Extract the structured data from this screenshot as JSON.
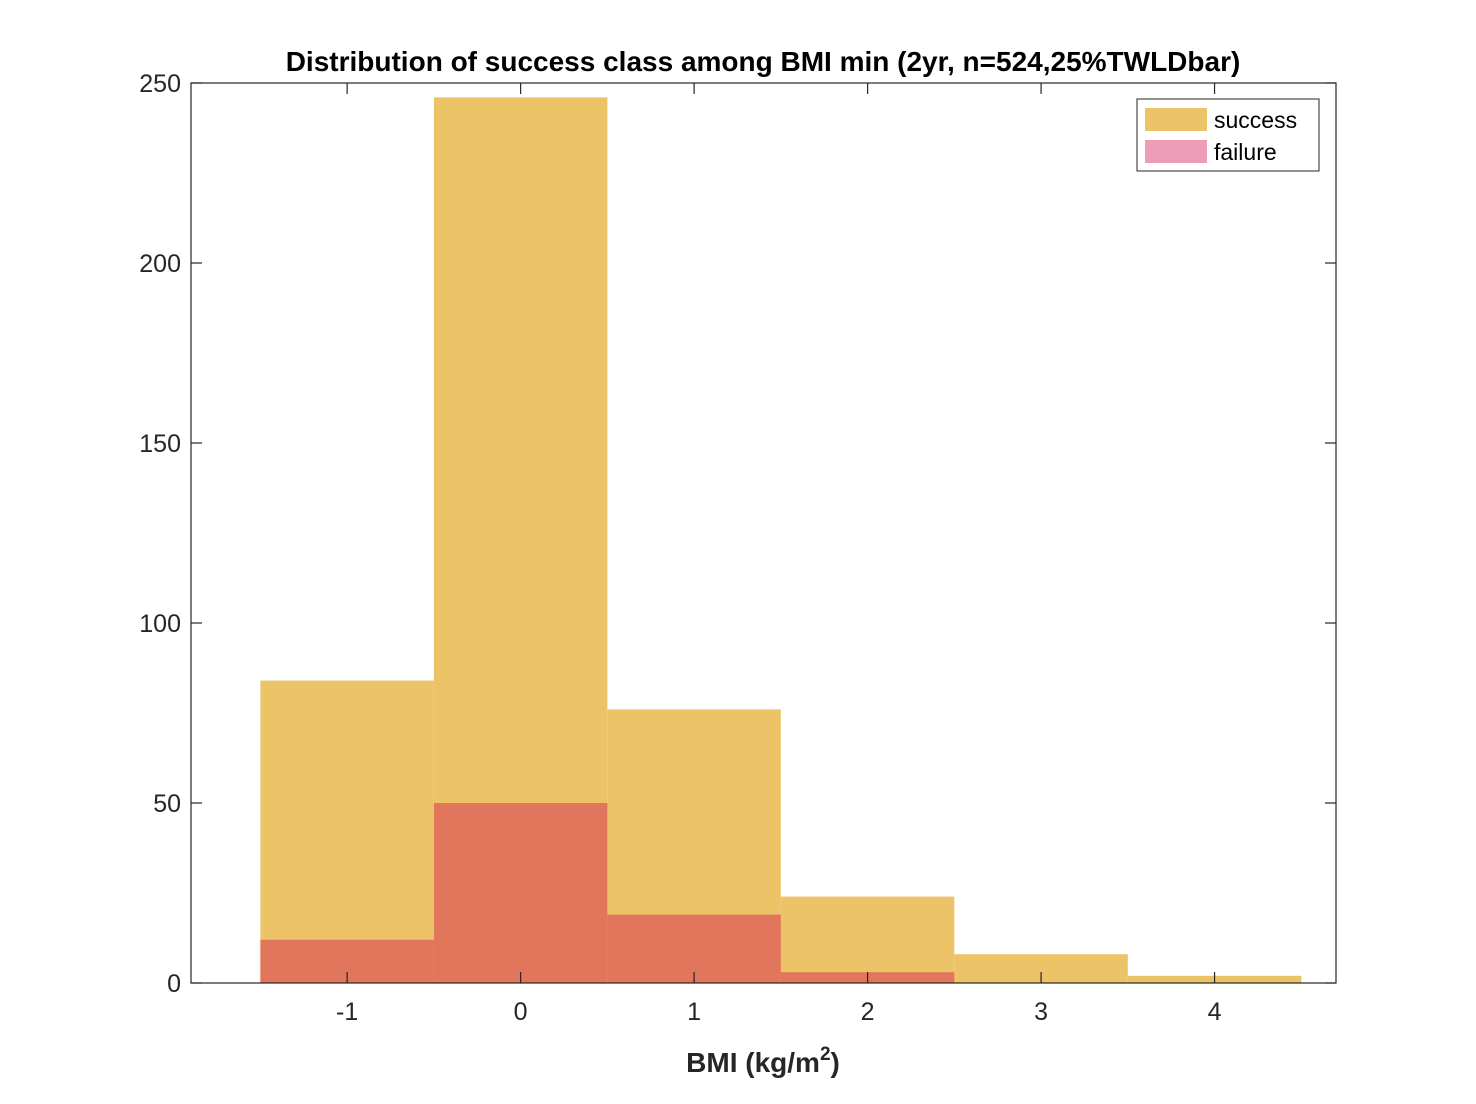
{
  "chart_data": {
    "type": "bar",
    "title": "Distribution of success class among BMI min (2yr, n=524,25%TWLDbar)",
    "xlabel_main": "BMI (kg/m",
    "xlabel_sup": "2",
    "xlabel_end": ")",
    "ylabel": "",
    "bin_edges": [
      -1.5,
      -0.5,
      0.5,
      1.5,
      2.5,
      3.5,
      4.5
    ],
    "xlim": [
      -1.9,
      4.7
    ],
    "ylim": [
      0,
      250
    ],
    "x_ticks": [
      -1,
      0,
      1,
      2,
      3,
      4
    ],
    "x_tick_labels": [
      "-1",
      "0",
      "1",
      "2",
      "3",
      "4"
    ],
    "y_ticks": [
      0,
      50,
      100,
      150,
      200,
      250
    ],
    "y_tick_labels": [
      "0",
      "50",
      "100",
      "150",
      "200",
      "250"
    ],
    "grid": false,
    "legend_position": "top-right",
    "series": [
      {
        "name": "success",
        "values": [
          84,
          246,
          76,
          24,
          8,
          2
        ],
        "color": "#EDC367"
      },
      {
        "name": "failure",
        "values": [
          12,
          50,
          19,
          3,
          0,
          0
        ],
        "color": "#E1765D",
        "legend_color": "#EE9DB8"
      }
    ]
  }
}
